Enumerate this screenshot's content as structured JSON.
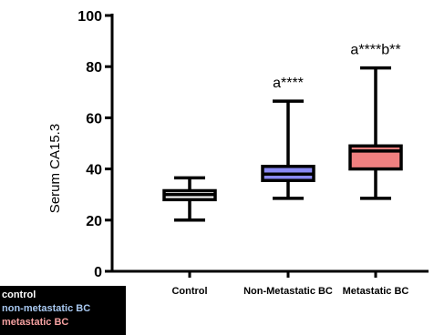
{
  "chart_data": {
    "type": "box",
    "ylabel": "Serum CA15.3",
    "ylim": [
      0,
      100
    ],
    "yticks": [
      0,
      20,
      40,
      60,
      80,
      100
    ],
    "categories": [
      "Control",
      "Non-Metastatic BC",
      "Metastatic BC"
    ],
    "boxes": [
      {
        "min": 20,
        "q1": 28,
        "median": 30,
        "q3": 31.5,
        "max": 36.5,
        "fill": "#ffffff",
        "annotation": ""
      },
      {
        "min": 28.5,
        "q1": 35.5,
        "median": 38,
        "q3": 41,
        "max": 66.5,
        "fill": "#8a8af5",
        "annotation": "a****"
      },
      {
        "min": 28.5,
        "q1": 40,
        "median": 47,
        "q3": 49,
        "max": 79.5,
        "fill": "#f08080",
        "annotation": "a****b**"
      }
    ]
  },
  "legend": [
    {
      "label": "control",
      "color": "#ffffff"
    },
    {
      "label": "non-metastatic BC",
      "color": "#a8c8f0"
    },
    {
      "label": "metastatic BC",
      "color": "#f4a0a0"
    }
  ]
}
